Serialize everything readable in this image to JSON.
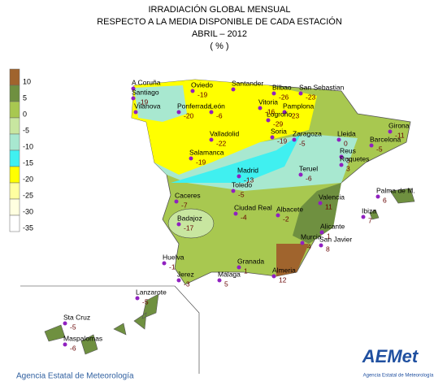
{
  "header": {
    "lines": [
      "IRRADIACIÓN GLOBAL MENSUAL",
      "RESPECTO A LA MEDIA DISPONIBLE DE CADA ESTACIÓN",
      "ABRIL – 2012",
      "( % )"
    ]
  },
  "legend": {
    "labels": [
      10,
      5,
      0,
      -5,
      -10,
      -15,
      -20,
      -25,
      -30,
      -35
    ],
    "colors": [
      "#a0642d",
      "#6f9040",
      "#a8c850",
      "#c8e6a0",
      "#a8e8d0",
      "#40f0f0",
      "#ffff00",
      "#ffffa0",
      "#ffffe0",
      "#ffffff"
    ]
  },
  "stations": [
    {
      "name": "A Coruña"
    },
    {
      "name": "Santiago",
      "value": -19
    },
    {
      "name": "Oviedo",
      "value": -19
    },
    {
      "name": "Santander"
    },
    {
      "name": "Bilbao",
      "value": -26
    },
    {
      "name": "San Sebastian",
      "value": -23
    },
    {
      "name": "Vilanova"
    },
    {
      "name": "Ponferrada",
      "value": -20
    },
    {
      "name": "León",
      "value": -6
    },
    {
      "name": "Vitoria",
      "value": -16
    },
    {
      "name": "Pamplona",
      "value": -23
    },
    {
      "name": "Logroño",
      "value": -29
    },
    {
      "name": "Valladolid",
      "value": -22
    },
    {
      "name": "Soria",
      "value": -19
    },
    {
      "name": "Zaragoza",
      "value": -5
    },
    {
      "name": "Lleida",
      "value": 0
    },
    {
      "name": "Girona",
      "value": -11
    },
    {
      "name": "Barcelona",
      "value": -5
    },
    {
      "name": "Salamanca",
      "value": -19
    },
    {
      "name": "Madrid",
      "value": -13
    },
    {
      "name": "Teruel",
      "value": -6
    },
    {
      "name": "Reus",
      "value": 3
    },
    {
      "name": "Roquetes",
      "value": 3
    },
    {
      "name": "Toledo",
      "value": -5
    },
    {
      "name": "Caceres",
      "value": -7
    },
    {
      "name": "Ciudad Real",
      "value": -4
    },
    {
      "name": "Albacete",
      "value": -2
    },
    {
      "name": "Valencia",
      "value": 11
    },
    {
      "name": "Palma de M.",
      "value": 6
    },
    {
      "name": "Ibiza",
      "value": 7
    },
    {
      "name": "Badajoz",
      "value": -17
    },
    {
      "name": "Alicante",
      "value": 1
    },
    {
      "name": "Murcia",
      "value": 4
    },
    {
      "name": "San Javier",
      "value": 8
    },
    {
      "name": "Huelva",
      "value": -1
    },
    {
      "name": "Granada",
      "value": 1
    },
    {
      "name": "Almeria",
      "value": 12
    },
    {
      "name": "Jerez",
      "value": -3
    },
    {
      "name": "Málaga",
      "value": 5
    },
    {
      "name": "Lanzarote",
      "value": -5
    },
    {
      "name": "Sta Cruz",
      "value": -5
    },
    {
      "name": "Maspalomas",
      "value": -6
    }
  ],
  "footer": {
    "agency": "Agencia Estatal de Meteorología",
    "logo": "AEMet",
    "logo_caption": "Agencia Estatal de Meteorología"
  }
}
